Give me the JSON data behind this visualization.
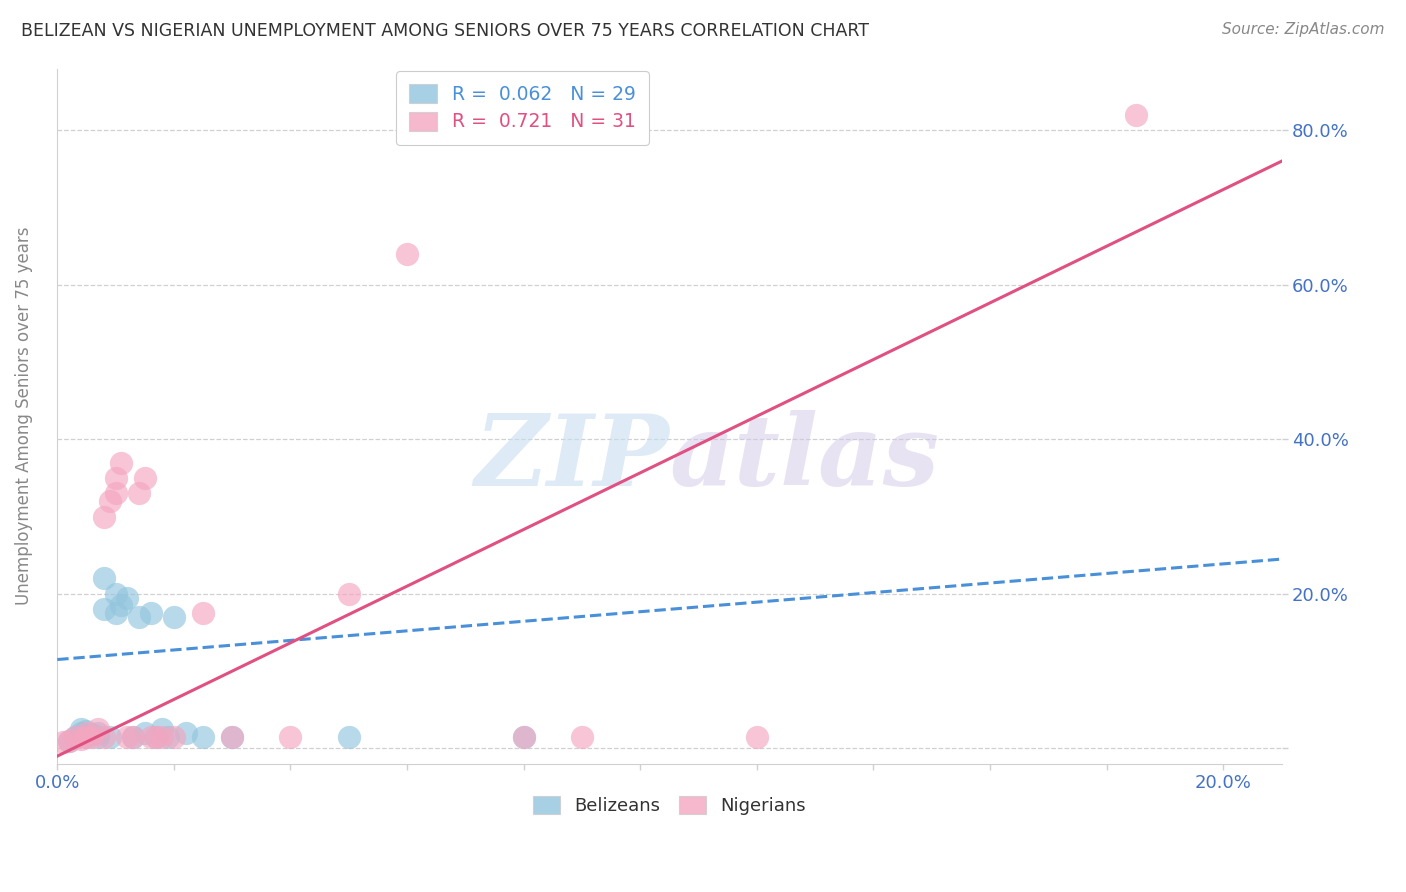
{
  "title": "BELIZEAN VS NIGERIAN UNEMPLOYMENT AMONG SENIORS OVER 75 YEARS CORRELATION CHART",
  "source": "Source: ZipAtlas.com",
  "ylabel": "Unemployment Among Seniors over 75 years",
  "xlim": [
    0.0,
    0.21
  ],
  "ylim": [
    -0.02,
    0.88
  ],
  "belizean_R": 0.062,
  "belizean_N": 29,
  "nigerian_R": 0.721,
  "nigerian_N": 31,
  "belizean_color": "#92c5de",
  "nigerian_color": "#f4a6c0",
  "belizean_line_color": "#4a90d9",
  "nigerian_line_color": "#e05080",
  "watermark_color": "#d8e8f0",
  "watermark_text": "ZIPatlas",
  "belizean_x": [
    0.002,
    0.003,
    0.004,
    0.004,
    0.005,
    0.005,
    0.006,
    0.007,
    0.007,
    0.008,
    0.008,
    0.009,
    0.01,
    0.01,
    0.011,
    0.012,
    0.013,
    0.014,
    0.015,
    0.016,
    0.017,
    0.018,
    0.019,
    0.02,
    0.022,
    0.025,
    0.03,
    0.05,
    0.08
  ],
  "belizean_y": [
    0.01,
    0.015,
    0.02,
    0.025,
    0.015,
    0.022,
    0.018,
    0.015,
    0.02,
    0.18,
    0.22,
    0.015,
    0.175,
    0.2,
    0.185,
    0.195,
    0.015,
    0.17,
    0.02,
    0.175,
    0.015,
    0.025,
    0.015,
    0.17,
    0.02,
    0.015,
    0.015,
    0.015,
    0.015
  ],
  "nigerian_x": [
    0.001,
    0.002,
    0.003,
    0.004,
    0.005,
    0.005,
    0.006,
    0.007,
    0.008,
    0.008,
    0.009,
    0.01,
    0.01,
    0.011,
    0.012,
    0.013,
    0.014,
    0.015,
    0.016,
    0.017,
    0.018,
    0.02,
    0.025,
    0.03,
    0.04,
    0.05,
    0.06,
    0.08,
    0.09,
    0.12,
    0.185
  ],
  "nigerian_y": [
    0.008,
    0.01,
    0.015,
    0.012,
    0.015,
    0.02,
    0.015,
    0.025,
    0.015,
    0.3,
    0.32,
    0.33,
    0.35,
    0.37,
    0.015,
    0.015,
    0.33,
    0.35,
    0.015,
    0.015,
    0.015,
    0.015,
    0.175,
    0.015,
    0.015,
    0.2,
    0.64,
    0.015,
    0.015,
    0.015,
    0.82
  ],
  "nigerian_line_x0": 0.0,
  "nigerian_line_y0": -0.01,
  "nigerian_line_x1": 0.21,
  "nigerian_line_y1": 0.76,
  "belizean_line_x0": 0.0,
  "belizean_line_y0": 0.115,
  "belizean_line_x1": 0.21,
  "belizean_line_y1": 0.245
}
